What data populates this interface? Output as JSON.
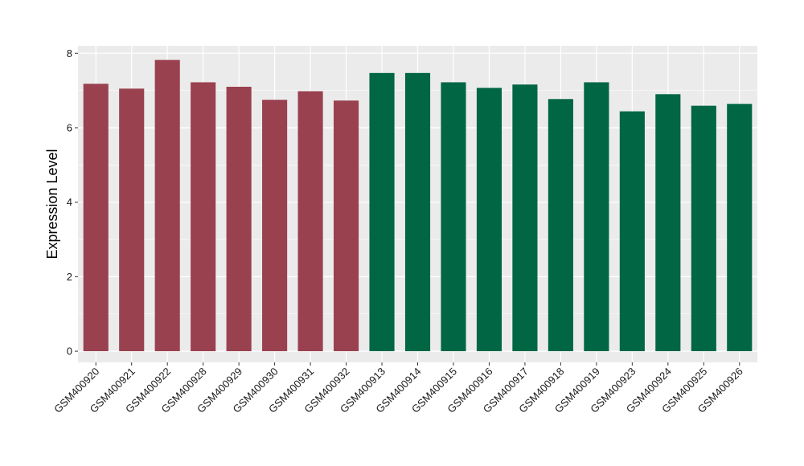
{
  "chart_data": {
    "type": "bar",
    "title": "",
    "xlabel": "",
    "ylabel": "Expression Level",
    "ylim": [
      -0.3,
      8.2
    ],
    "yticks": [
      0,
      2,
      4,
      6,
      8
    ],
    "grid": true,
    "categories": [
      "GSM400920",
      "GSM400921",
      "GSM400922",
      "GSM400928",
      "GSM400929",
      "GSM400930",
      "GSM400931",
      "GSM400932",
      "GSM400913",
      "GSM400914",
      "GSM400915",
      "GSM400916",
      "GSM400917",
      "GSM400918",
      "GSM400919",
      "GSM400923",
      "GSM400924",
      "GSM400925",
      "GSM400926"
    ],
    "values": [
      7.18,
      7.05,
      7.82,
      7.22,
      7.1,
      6.75,
      6.98,
      6.73,
      7.47,
      7.47,
      7.22,
      7.07,
      7.16,
      6.77,
      7.22,
      6.44,
      6.9,
      6.59,
      6.64
    ],
    "groups": [
      0,
      0,
      0,
      0,
      0,
      0,
      0,
      0,
      1,
      1,
      1,
      1,
      1,
      1,
      1,
      1,
      1,
      1,
      1
    ],
    "group_colors": [
      "#9a414f",
      "#006644"
    ],
    "panel_background": "#ebebeb",
    "grid_color": "#ffffff"
  }
}
